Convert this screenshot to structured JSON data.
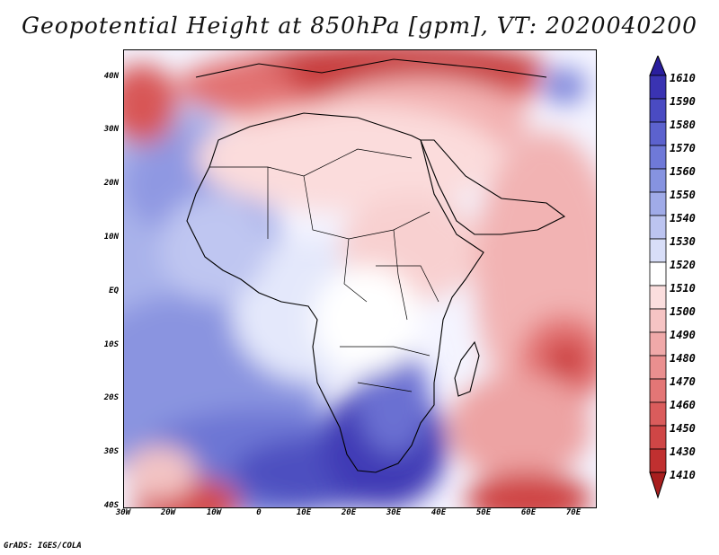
{
  "title": "Geopotential Height at 850hPa [gpm], VT: 2020040200",
  "footer": "GrADS: IGES/COLA",
  "axes": {
    "y_labels": [
      "40N",
      "30N",
      "20N",
      "10N",
      "EQ",
      "10S",
      "20S",
      "30S",
      "40S"
    ],
    "x_labels": [
      "30W",
      "20W",
      "10W",
      "0",
      "10E",
      "20E",
      "30E",
      "40E",
      "50E",
      "60E",
      "70E"
    ]
  },
  "colorbar": {
    "labels": [
      "1610",
      "1590",
      "1580",
      "1570",
      "1560",
      "1550",
      "1540",
      "1530",
      "1520",
      "1510",
      "1500",
      "1490",
      "1480",
      "1470",
      "1460",
      "1450",
      "1430",
      "1410"
    ],
    "colors": [
      "#2a1e9e",
      "#3a33b2",
      "#4a4bc2",
      "#5c62ce",
      "#6f79d8",
      "#8693e0",
      "#a0abe8",
      "#bcc4f0",
      "#d8def8",
      "#ffffff",
      "#fbdede",
      "#f6c4c4",
      "#f0a9a9",
      "#ea8f8f",
      "#e37676",
      "#da5c5c",
      "#cf4646",
      "#c03030",
      "#a81e1e"
    ]
  },
  "palette": {
    "deep_blue": "#3a33b2",
    "light_blue": "#d8def8",
    "neutral": "#ffffff",
    "light_red": "#fbdede",
    "deep_red": "#c03030"
  }
}
